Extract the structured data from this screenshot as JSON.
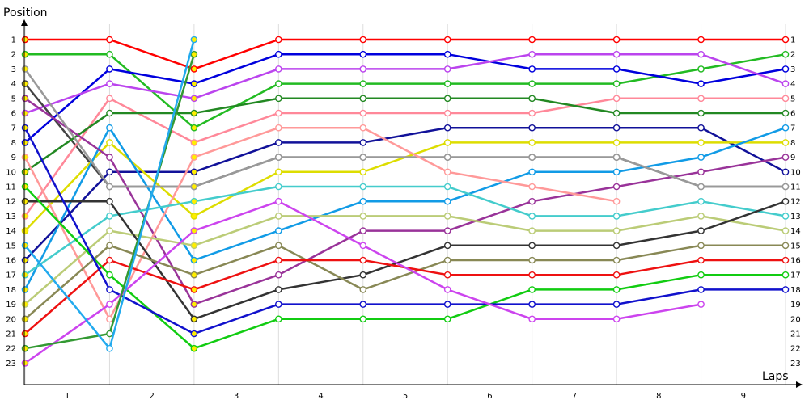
{
  "chart_data": {
    "type": "line",
    "title": "",
    "ylabel": "Position",
    "xlabel": "Laps",
    "x_categories": [
      "1",
      "2",
      "3",
      "4",
      "5",
      "6",
      "7",
      "8",
      "9"
    ],
    "positions": [
      "1",
      "2",
      "3",
      "4",
      "5",
      "6",
      "7",
      "8",
      "9",
      "10",
      "11",
      "12",
      "13",
      "14",
      "15",
      "16",
      "17",
      "18",
      "19",
      "20",
      "21",
      "22",
      "23"
    ],
    "x_points": [
      0,
      1,
      2,
      3,
      4,
      5,
      6,
      7,
      8,
      9
    ],
    "grid": true,
    "series": [
      {
        "color": "#ff0000",
        "values": [
          1,
          1,
          3,
          1,
          1,
          1,
          1,
          1,
          1,
          1
        ]
      },
      {
        "color": "#22bb22",
        "values": [
          2,
          2,
          7,
          4,
          4,
          4,
          4,
          4,
          3,
          2
        ]
      },
      {
        "color": "#0000dd",
        "values": [
          8,
          3,
          4,
          2,
          2,
          2,
          3,
          3,
          4,
          3
        ]
      },
      {
        "color": "#bb44ee",
        "values": [
          6,
          4,
          5,
          3,
          3,
          3,
          2,
          2,
          2,
          4
        ]
      },
      {
        "color": "#444444",
        "values": [
          4,
          11,
          11,
          9,
          9,
          9,
          9,
          9,
          11,
          11
        ]
      },
      {
        "color": "#ff8899",
        "values": [
          13,
          5,
          8,
          6,
          6,
          6,
          6,
          5,
          5,
          5
        ]
      },
      {
        "color": "#228822",
        "values": [
          10,
          6,
          6,
          5,
          5,
          5,
          5,
          6,
          6,
          6
        ]
      },
      {
        "color": "#111199",
        "values": [
          16,
          10,
          10,
          8,
          8,
          7,
          7,
          7,
          7,
          10
        ]
      },
      {
        "color": "#dddd00",
        "values": [
          14,
          8,
          13,
          10,
          10,
          8,
          8,
          8,
          8,
          8
        ]
      },
      {
        "color": "#119be6",
        "values": [
          18,
          7,
          16,
          14,
          12,
          12,
          10,
          10,
          9,
          7
        ]
      },
      {
        "color": "#993399",
        "values": [
          5,
          9,
          19,
          17,
          14,
          14,
          12,
          11,
          10,
          9
        ]
      },
      {
        "color": "#999999",
        "values": [
          3,
          11,
          11,
          9,
          9,
          9,
          9,
          9,
          11,
          11
        ]
      },
      {
        "color": "#ff9999",
        "values": [
          9,
          20,
          9,
          7,
          7,
          10,
          11,
          12,
          null,
          null
        ]
      },
      {
        "color": "#44cccc",
        "values": [
          17,
          13,
          12,
          11,
          11,
          11,
          13,
          13,
          12,
          13
        ]
      },
      {
        "color": "#bbcc77",
        "values": [
          19,
          14,
          15,
          13,
          13,
          13,
          14,
          14,
          13,
          14
        ]
      },
      {
        "color": "#333333",
        "values": [
          12,
          12,
          20,
          18,
          17,
          15,
          15,
          15,
          14,
          12
        ]
      },
      {
        "color": "#888855",
        "values": [
          20,
          15,
          17,
          15,
          18,
          16,
          16,
          16,
          15,
          15
        ]
      },
      {
        "color": "#ee1111",
        "values": [
          21,
          16,
          18,
          16,
          16,
          17,
          17,
          17,
          16,
          16
        ]
      },
      {
        "color": "#11cc11",
        "values": [
          11,
          17,
          22,
          20,
          20,
          20,
          18,
          18,
          17,
          17
        ]
      },
      {
        "color": "#1111cc",
        "values": [
          7,
          18,
          21,
          19,
          19,
          19,
          19,
          19,
          18,
          18
        ]
      },
      {
        "color": "#cc44ee",
        "values": [
          23,
          19,
          14,
          12,
          15,
          18,
          20,
          20,
          19,
          null
        ]
      },
      {
        "color": "#339933",
        "values": [
          22,
          21,
          2,
          null,
          null,
          null,
          null,
          null,
          null,
          null
        ]
      },
      {
        "color": "#22aaee",
        "values": [
          15,
          22,
          1,
          null,
          null,
          null,
          null,
          null,
          null,
          null
        ]
      }
    ]
  }
}
